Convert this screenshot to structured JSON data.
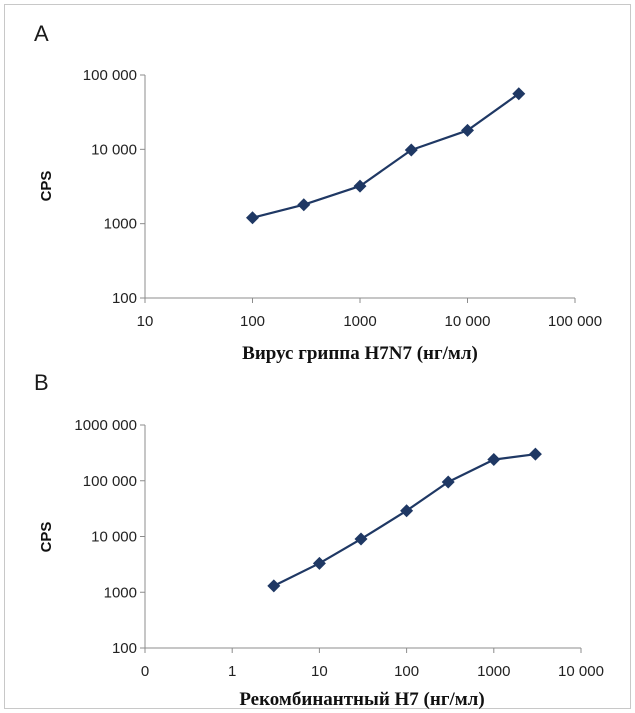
{
  "chart_data": [
    {
      "type": "line",
      "panel_label": "A",
      "xlabel": "Вирус гриппа H7N7 (нг/мл)",
      "ylabel": "CPS",
      "x_scale": "log",
      "y_scale": "log",
      "xlim": [
        10,
        100000
      ],
      "ylim": [
        100,
        100000
      ],
      "x_ticks": [
        10,
        100,
        1000,
        10000,
        100000
      ],
      "x_tick_labels": [
        "10",
        "100",
        "1000",
        "10 000",
        "100 000"
      ],
      "y_ticks": [
        100,
        1000,
        10000,
        100000
      ],
      "y_tick_labels": [
        "100",
        "1000",
        "10 000",
        "100 000"
      ],
      "grid": false,
      "color": "#1f3864",
      "marker": "diamond",
      "series": [
        {
          "x": [
            100,
            300,
            1000,
            3000,
            10000,
            30000
          ],
          "y": [
            1200,
            1800,
            3200,
            9800,
            18000,
            56000
          ]
        }
      ]
    },
    {
      "type": "line",
      "panel_label": "B",
      "xlabel": "Рекомбинантный H7 (нг/мл)",
      "ylabel": "CPS",
      "x_scale": "log",
      "y_scale": "log",
      "xlim": [
        0.1,
        10000
      ],
      "ylim": [
        100,
        1000000
      ],
      "x_ticks": [
        0.1,
        1,
        10,
        100,
        1000,
        10000
      ],
      "x_tick_labels": [
        "0",
        "1",
        "10",
        "100",
        "1000",
        "10 000"
      ],
      "y_ticks": [
        100,
        1000,
        10000,
        100000,
        1000000
      ],
      "y_tick_labels": [
        "100",
        "1000",
        "10 000",
        "100 000",
        "1000 000"
      ],
      "grid": false,
      "color": "#1f3864",
      "marker": "diamond",
      "series": [
        {
          "x": [
            3,
            10,
            30,
            100,
            300,
            1000,
            3000
          ],
          "y": [
            1300,
            3300,
            9000,
            29000,
            95000,
            240000,
            300000
          ]
        }
      ]
    }
  ]
}
